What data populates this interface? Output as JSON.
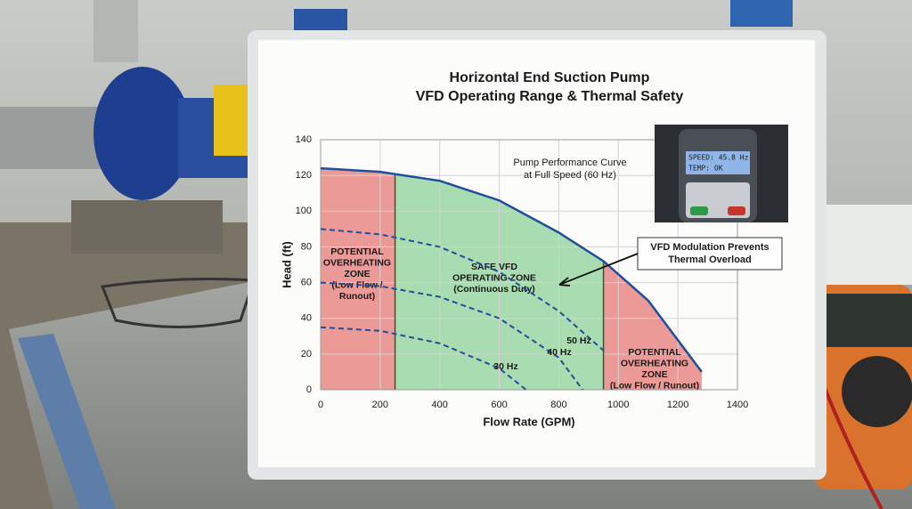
{
  "chart_data": {
    "type": "line",
    "title": [
      "Horizontal End Suction Pump",
      "VFD Operating Range & Thermal Safety"
    ],
    "x_label": "Flow Rate (GPM)",
    "y_label": "Head (ft)",
    "xlim": [
      0,
      1400
    ],
    "ylim": [
      0,
      140
    ],
    "xticks": [
      0,
      200,
      400,
      600,
      800,
      1000,
      1200,
      1400
    ],
    "yticks": [
      0,
      20,
      40,
      60,
      80,
      100,
      120,
      140
    ],
    "grid": true,
    "series": [
      {
        "label": [
          "Pump Performance Curve",
          "at Full Speed (60 Hz)"
        ],
        "color": "#1f4e9c",
        "dash": false,
        "x": [
          0,
          200,
          400,
          600,
          800,
          950,
          1100,
          1280
        ],
        "values": [
          124,
          122,
          117,
          106,
          88,
          72,
          50,
          10
        ]
      },
      {
        "name": "50 Hz",
        "color": "#1f4e9c",
        "dash": true,
        "x": [
          0,
          200,
          400,
          600,
          800,
          950
        ],
        "values": [
          90,
          87,
          80,
          66,
          44,
          22
        ]
      },
      {
        "name": "40 Hz",
        "color": "#1f4e9c",
        "dash": true,
        "x": [
          0,
          200,
          400,
          600,
          800,
          880
        ],
        "values": [
          60,
          58,
          52,
          40,
          18,
          0
        ]
      },
      {
        "name": "30 Hz",
        "color": "#1f4e9c",
        "dash": true,
        "x": [
          0,
          200,
          400,
          600,
          690
        ],
        "values": [
          35,
          33,
          26,
          12,
          0
        ]
      }
    ],
    "zones": [
      {
        "lines": [
          "POTENTIAL",
          "OVERHEATING",
          "ZONE",
          "(Low Flow /",
          "Runout)"
        ],
        "xlim": [
          0,
          250
        ],
        "color": "#ec9a98"
      },
      {
        "lines": [
          "SAFE VFD",
          "OPERATING ZONE",
          "(Continuous Duty)"
        ],
        "xlim": [
          250,
          950
        ],
        "color": "#a9dcb0"
      },
      {
        "lines": [
          "POTENTIAL",
          "OVERHEATING",
          "ZONE",
          "(Low Flow / Runout)"
        ],
        "xlim": [
          950,
          1280
        ],
        "color": "#ec9a98"
      }
    ],
    "annotation": [
      "VFD Modulation Prevents",
      "Thermal Overload"
    ]
  },
  "display": {
    "lines": [
      "SPEED: 45.8 Hz",
      "TEMP: OK"
    ]
  }
}
